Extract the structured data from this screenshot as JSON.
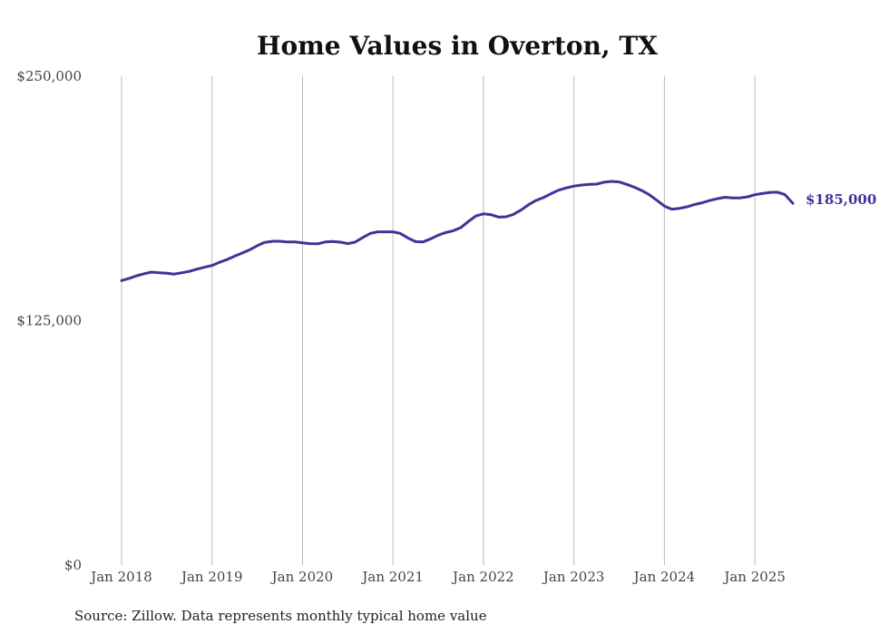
{
  "chart_data": {
    "type": "line",
    "title": "Home Values in Overton, TX",
    "xlabel": "",
    "ylabel": "",
    "ylim": [
      0,
      250000
    ],
    "y_ticks": [
      {
        "value": 0,
        "label": "$0"
      },
      {
        "value": 125000,
        "label": "$125,000"
      },
      {
        "value": 250000,
        "label": "$250,000"
      }
    ],
    "x_ticks": [
      {
        "value": 2018,
        "label": "Jan 2018"
      },
      {
        "value": 2019,
        "label": "Jan 2019"
      },
      {
        "value": 2020,
        "label": "Jan 2020"
      },
      {
        "value": 2021,
        "label": "Jan 2021"
      },
      {
        "value": 2022,
        "label": "Jan 2022"
      },
      {
        "value": 2023,
        "label": "Jan 2023"
      },
      {
        "value": 2024,
        "label": "Jan 2024"
      },
      {
        "value": 2025,
        "label": "Jan 2025"
      }
    ],
    "xlim": [
      2018,
      2025.75
    ],
    "grid": "vertical",
    "series": [
      {
        "color": "#3d3598",
        "x": [
          2018.0,
          2018.08,
          2018.17,
          2018.25,
          2018.33,
          2018.42,
          2018.5,
          2018.58,
          2018.67,
          2018.75,
          2018.83,
          2018.92,
          2019.0,
          2019.08,
          2019.17,
          2019.25,
          2019.33,
          2019.42,
          2019.5,
          2019.58,
          2019.67,
          2019.75,
          2019.83,
          2019.92,
          2020.0,
          2020.08,
          2020.17,
          2020.25,
          2020.33,
          2020.42,
          2020.5,
          2020.58,
          2020.67,
          2020.75,
          2020.83,
          2020.92,
          2021.0,
          2021.08,
          2021.17,
          2021.25,
          2021.33,
          2021.42,
          2021.5,
          2021.58,
          2021.67,
          2021.75,
          2021.83,
          2021.92,
          2022.0,
          2022.08,
          2022.17,
          2022.25,
          2022.33,
          2022.42,
          2022.5,
          2022.58,
          2022.67,
          2022.75,
          2022.83,
          2022.92,
          2023.0,
          2023.08,
          2023.17,
          2023.25,
          2023.33,
          2023.42,
          2023.5,
          2023.58,
          2023.67,
          2023.75,
          2023.83,
          2023.92,
          2024.0,
          2024.08,
          2024.17,
          2024.25,
          2024.33,
          2024.42,
          2024.5,
          2024.58,
          2024.67,
          2024.75,
          2024.83,
          2024.92,
          2025.0,
          2025.08,
          2025.17,
          2025.25,
          2025.33,
          2025.42
        ],
        "y": [
          145500,
          146500,
          148000,
          149000,
          149800,
          149500,
          149200,
          148800,
          149500,
          150200,
          151300,
          152300,
          153200,
          154800,
          156300,
          158000,
          159500,
          161300,
          163300,
          165000,
          165600,
          165600,
          165200,
          165200,
          164800,
          164400,
          164300,
          165200,
          165500,
          165100,
          164400,
          165100,
          167600,
          169600,
          170400,
          170400,
          170400,
          169600,
          167100,
          165400,
          165200,
          166900,
          168700,
          170000,
          171000,
          172600,
          175600,
          178600,
          179600,
          179200,
          177900,
          178100,
          179300,
          181700,
          184300,
          186400,
          188100,
          190000,
          191700,
          192900,
          193800,
          194300,
          194700,
          194800,
          195800,
          196200,
          195900,
          194700,
          193200,
          191500,
          189500,
          186400,
          183600,
          182000,
          182400,
          183200,
          184300,
          185300,
          186400,
          187300,
          188100,
          187700,
          187700,
          188300,
          189400,
          190000,
          190600,
          190700,
          189500,
          185000
        ]
      }
    ],
    "end_label": "$185,000",
    "source": "Source: Zillow. Data represents monthly typical home value"
  }
}
